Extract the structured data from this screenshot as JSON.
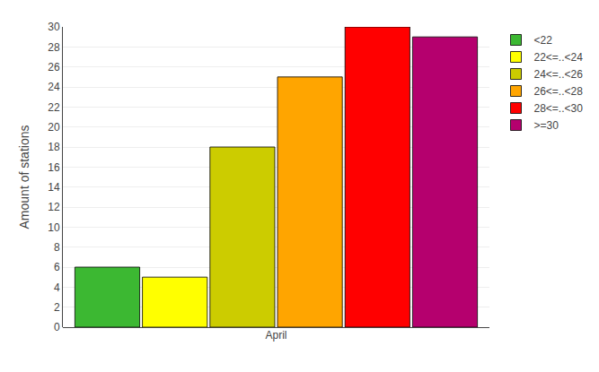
{
  "chart_data": {
    "type": "bar",
    "categories": [
      "April"
    ],
    "series": [
      {
        "name": "<22",
        "color": "#3cb832",
        "values": [
          6
        ]
      },
      {
        "name": "22<=..<24",
        "color": "#ffff00",
        "values": [
          5
        ]
      },
      {
        "name": "24<=..<26",
        "color": "#cccc00",
        "values": [
          18
        ]
      },
      {
        "name": "26<=..<28",
        "color": "#ffa500",
        "values": [
          25
        ]
      },
      {
        "name": "28<=..<30",
        "color": "#ff0000",
        "values": [
          30
        ]
      },
      {
        "name": ">=30",
        "color": "#b5006e",
        "values": [
          29
        ]
      }
    ],
    "y_label": "Amount of stations",
    "ylim": [
      0,
      30
    ],
    "yticks": [
      0,
      2,
      4,
      6,
      8,
      10,
      12,
      14,
      16,
      18,
      20,
      22,
      24,
      26,
      28,
      30
    ],
    "grid": true,
    "legend": "upper right"
  }
}
